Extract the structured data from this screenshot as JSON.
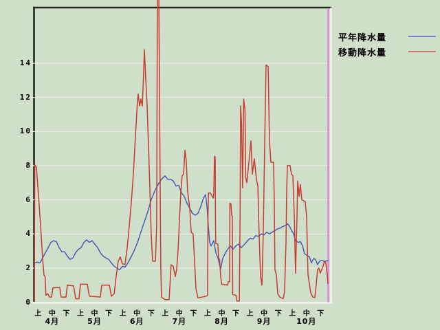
{
  "window": {
    "background_color": "#d0dfca"
  },
  "chart_data": {
    "type": "line",
    "title": "",
    "grid": true,
    "gridline_color": "#edf3e9",
    "frame": {
      "dark_edge_color": "#1f2a1e",
      "light_edge_color": "#f2f6ee"
    },
    "y_axis": {
      "ticks": [
        0,
        2,
        4,
        6,
        8,
        10,
        12,
        14
      ],
      "labels": [
        "0",
        "2",
        "4",
        "6",
        "8",
        "10",
        "12",
        "14"
      ],
      "visible_max_label": 14,
      "frame_top_value": 17.3
    },
    "x_axis": {
      "period_labels": [
        "上",
        "中",
        "下"
      ],
      "months": [
        "4月",
        "5月",
        "6月",
        "7月",
        "8月",
        "9月",
        "10月"
      ]
    },
    "legend": [
      {
        "label": "平年降水量",
        "swatch_color": "#7484c2"
      },
      {
        "label": "移動降水量",
        "swatch_color": "#c47c70"
      }
    ],
    "marker_line": {
      "name": "current-date-marker",
      "color": "#e27fe2",
      "tick_position": 20.54
    },
    "series": [
      {
        "name": "平年降水量",
        "color": "#4c5ab6",
        "points": [
          [
            -0.26,
            2.0
          ],
          [
            -0.26,
            2.3
          ],
          [
            -0.06,
            2.35
          ],
          [
            0.13,
            2.3
          ],
          [
            0.33,
            2.6
          ],
          [
            0.52,
            2.9
          ],
          [
            0.72,
            3.2
          ],
          [
            0.91,
            3.5
          ],
          [
            1.1,
            3.6
          ],
          [
            1.3,
            3.55
          ],
          [
            1.49,
            3.2
          ],
          [
            1.69,
            2.95
          ],
          [
            1.88,
            2.95
          ],
          [
            2.08,
            2.7
          ],
          [
            2.27,
            2.5
          ],
          [
            2.47,
            2.6
          ],
          [
            2.66,
            2.9
          ],
          [
            2.86,
            3.1
          ],
          [
            3.05,
            3.2
          ],
          [
            3.25,
            3.5
          ],
          [
            3.44,
            3.65
          ],
          [
            3.63,
            3.5
          ],
          [
            3.83,
            3.6
          ],
          [
            4.02,
            3.4
          ],
          [
            4.22,
            3.2
          ],
          [
            4.41,
            2.9
          ],
          [
            4.61,
            2.7
          ],
          [
            4.8,
            2.6
          ],
          [
            5.0,
            2.5
          ],
          [
            5.19,
            2.3
          ],
          [
            5.39,
            2.1
          ],
          [
            5.58,
            2.0
          ],
          [
            5.78,
            1.9
          ],
          [
            5.97,
            2.1
          ],
          [
            6.16,
            2.05
          ],
          [
            6.36,
            2.3
          ],
          [
            6.55,
            2.6
          ],
          [
            6.8,
            3.0
          ],
          [
            7.04,
            3.5
          ],
          [
            7.28,
            4.1
          ],
          [
            7.53,
            4.7
          ],
          [
            7.77,
            5.3
          ],
          [
            8.01,
            6.0
          ],
          [
            8.26,
            6.5
          ],
          [
            8.5,
            6.9
          ],
          [
            8.74,
            7.2
          ],
          [
            8.99,
            7.4
          ],
          [
            9.18,
            7.2
          ],
          [
            9.38,
            7.2
          ],
          [
            9.57,
            7.1
          ],
          [
            9.77,
            6.8
          ],
          [
            9.96,
            6.85
          ],
          [
            10.16,
            6.4
          ],
          [
            10.35,
            6.2
          ],
          [
            10.54,
            5.8
          ],
          [
            10.74,
            5.5
          ],
          [
            10.93,
            5.2
          ],
          [
            11.13,
            5.1
          ],
          [
            11.32,
            5.2
          ],
          [
            11.52,
            5.6
          ],
          [
            11.71,
            6.1
          ],
          [
            11.86,
            6.3
          ],
          [
            11.96,
            5.6
          ],
          [
            12.05,
            4.5
          ],
          [
            12.15,
            3.5
          ],
          [
            12.25,
            3.3
          ],
          [
            12.44,
            3.6
          ],
          [
            12.59,
            2.9
          ],
          [
            12.73,
            2.6
          ],
          [
            12.93,
            1.95
          ],
          [
            13.07,
            2.55
          ],
          [
            13.27,
            2.9
          ],
          [
            13.42,
            3.1
          ],
          [
            13.61,
            3.3
          ],
          [
            13.8,
            3.1
          ],
          [
            14.0,
            3.3
          ],
          [
            14.19,
            3.4
          ],
          [
            14.39,
            3.2
          ],
          [
            14.63,
            3.4
          ],
          [
            14.83,
            3.6
          ],
          [
            15.02,
            3.75
          ],
          [
            15.22,
            3.7
          ],
          [
            15.41,
            3.9
          ],
          [
            15.61,
            3.85
          ],
          [
            15.8,
            4.0
          ],
          [
            16.0,
            3.95
          ],
          [
            16.19,
            4.1
          ],
          [
            16.38,
            4.0
          ],
          [
            16.58,
            4.1
          ],
          [
            16.77,
            4.2
          ],
          [
            16.97,
            4.3
          ],
          [
            17.16,
            4.35
          ],
          [
            17.36,
            4.45
          ],
          [
            17.55,
            4.5
          ],
          [
            17.65,
            4.6
          ],
          [
            17.8,
            4.45
          ],
          [
            17.94,
            4.2
          ],
          [
            18.09,
            4.0
          ],
          [
            18.23,
            3.6
          ],
          [
            18.43,
            3.5
          ],
          [
            18.57,
            3.55
          ],
          [
            18.72,
            3.3
          ],
          [
            18.86,
            2.85
          ],
          [
            19.01,
            2.75
          ],
          [
            19.21,
            2.65
          ],
          [
            19.35,
            2.3
          ],
          [
            19.5,
            2.55
          ],
          [
            19.64,
            2.5
          ],
          [
            19.79,
            2.2
          ],
          [
            19.93,
            2.4
          ],
          [
            20.08,
            2.45
          ],
          [
            20.23,
            2.4
          ],
          [
            20.37,
            2.4
          ],
          [
            20.52,
            2.45
          ]
        ]
      },
      {
        "name": "移動降水量",
        "color": "#c53c30",
        "points": [
          [
            -0.26,
            0.1
          ],
          [
            -0.23,
            8.05
          ],
          [
            -0.11,
            7.9
          ],
          [
            0.03,
            6.3
          ],
          [
            0.18,
            4.5
          ],
          [
            0.33,
            2.5
          ],
          [
            0.42,
            1.6
          ],
          [
            0.5,
            1.5
          ],
          [
            0.56,
            0.4
          ],
          [
            0.68,
            0.5
          ],
          [
            0.82,
            0.3
          ],
          [
            0.96,
            0.3
          ],
          [
            1.06,
            0.85
          ],
          [
            1.54,
            0.85
          ],
          [
            1.64,
            0.3
          ],
          [
            1.98,
            0.3
          ],
          [
            2.08,
            1.0
          ],
          [
            2.52,
            0.95
          ],
          [
            2.66,
            0.2
          ],
          [
            2.9,
            0.2
          ],
          [
            3.0,
            1.05
          ],
          [
            3.49,
            1.05
          ],
          [
            3.63,
            0.35
          ],
          [
            4.41,
            0.3
          ],
          [
            4.51,
            1.0
          ],
          [
            5.05,
            1.0
          ],
          [
            5.19,
            0.35
          ],
          [
            5.39,
            0.5
          ],
          [
            5.53,
            1.5
          ],
          [
            5.68,
            2.4
          ],
          [
            5.82,
            2.65
          ],
          [
            5.97,
            2.25
          ],
          [
            6.16,
            2.2
          ],
          [
            6.31,
            3.2
          ],
          [
            6.46,
            4.5
          ],
          [
            6.6,
            5.8
          ],
          [
            6.75,
            7.5
          ],
          [
            6.9,
            9.8
          ],
          [
            7.04,
            11.8
          ],
          [
            7.09,
            12.2
          ],
          [
            7.19,
            11.5
          ],
          [
            7.28,
            11.9
          ],
          [
            7.38,
            11.5
          ],
          [
            7.48,
            13.5
          ],
          [
            7.53,
            14.8
          ],
          [
            7.63,
            13.0
          ],
          [
            7.72,
            11.6
          ],
          [
            7.82,
            9.2
          ],
          [
            7.92,
            6.5
          ],
          [
            8.01,
            4.0
          ],
          [
            8.11,
            2.4
          ],
          [
            8.31,
            2.4
          ],
          [
            8.4,
            4.5
          ],
          [
            8.45,
            18.0
          ],
          [
            8.55,
            18.0
          ],
          [
            8.65,
            6.0
          ],
          [
            8.69,
            2.0
          ],
          [
            8.74,
            0.3
          ],
          [
            8.99,
            0.15
          ],
          [
            9.28,
            0.15
          ],
          [
            9.42,
            2.2
          ],
          [
            9.57,
            2.1
          ],
          [
            9.72,
            1.5
          ],
          [
            9.81,
            1.9
          ],
          [
            9.91,
            3.0
          ],
          [
            10.01,
            4.8
          ],
          [
            10.11,
            6.5
          ],
          [
            10.2,
            7.4
          ],
          [
            10.3,
            7.5
          ],
          [
            10.4,
            8.9
          ],
          [
            10.49,
            8.3
          ],
          [
            10.59,
            6.5
          ],
          [
            10.74,
            5.5
          ],
          [
            10.84,
            4.1
          ],
          [
            10.98,
            4.0
          ],
          [
            11.08,
            2.4
          ],
          [
            11.18,
            0.8
          ],
          [
            11.32,
            0.25
          ],
          [
            11.91,
            0.35
          ],
          [
            12.0,
            0.4
          ],
          [
            12.03,
            5.0
          ],
          [
            12.07,
            6.4
          ],
          [
            12.2,
            6.4
          ],
          [
            12.4,
            6.1
          ],
          [
            12.44,
            6.3
          ],
          [
            12.49,
            8.55
          ],
          [
            12.54,
            8.5
          ],
          [
            12.56,
            5.0
          ],
          [
            12.58,
            3.45
          ],
          [
            12.73,
            3.4
          ],
          [
            12.78,
            2.6
          ],
          [
            12.85,
            2.5
          ],
          [
            12.93,
            1.5
          ],
          [
            13.0,
            1.05
          ],
          [
            13.42,
            1.0
          ],
          [
            13.47,
            1.2
          ],
          [
            13.56,
            1.2
          ],
          [
            13.58,
            5.8
          ],
          [
            13.66,
            5.75
          ],
          [
            13.71,
            5.1
          ],
          [
            13.75,
            5.05
          ],
          [
            13.78,
            0.45
          ],
          [
            14.02,
            0.4
          ],
          [
            14.07,
            0.07
          ],
          [
            14.25,
            0.07
          ],
          [
            14.3,
            5.0
          ],
          [
            14.34,
            11.5
          ],
          [
            14.41,
            10.4
          ],
          [
            14.48,
            6.7
          ],
          [
            14.56,
            11.9
          ],
          [
            14.65,
            11.2
          ],
          [
            14.7,
            7.3
          ],
          [
            14.78,
            7.0
          ],
          [
            14.9,
            8.0
          ],
          [
            15.07,
            9.45
          ],
          [
            15.17,
            7.5
          ],
          [
            15.31,
            8.4
          ],
          [
            15.46,
            7.2
          ],
          [
            15.56,
            6.8
          ],
          [
            15.65,
            4.0
          ],
          [
            15.75,
            1.5
          ],
          [
            15.85,
            1.0
          ],
          [
            15.94,
            4.0
          ],
          [
            16.04,
            9.0
          ],
          [
            16.14,
            13.9
          ],
          [
            16.29,
            13.8
          ],
          [
            16.38,
            9.5
          ],
          [
            16.48,
            8.2
          ],
          [
            16.67,
            8.2
          ],
          [
            16.72,
            6.0
          ],
          [
            16.77,
            1.9
          ],
          [
            16.87,
            1.6
          ],
          [
            16.97,
            0.5
          ],
          [
            17.11,
            0.3
          ],
          [
            17.36,
            0.2
          ],
          [
            17.45,
            0.6
          ],
          [
            17.55,
            3.5
          ],
          [
            17.6,
            6.5
          ],
          [
            17.65,
            8.0
          ],
          [
            17.84,
            8.0
          ],
          [
            17.94,
            7.5
          ],
          [
            18.04,
            7.4
          ],
          [
            18.14,
            5.0
          ],
          [
            18.23,
            1.7
          ],
          [
            18.33,
            5.0
          ],
          [
            18.38,
            7.1
          ],
          [
            18.48,
            6.2
          ],
          [
            18.57,
            6.9
          ],
          [
            18.67,
            6.0
          ],
          [
            18.91,
            5.9
          ],
          [
            19.01,
            5.0
          ],
          [
            19.11,
            1.6
          ],
          [
            19.21,
            1.05
          ],
          [
            19.3,
            0.55
          ],
          [
            19.45,
            0.3
          ],
          [
            19.59,
            0.27
          ],
          [
            19.69,
            1.0
          ],
          [
            19.79,
            1.9
          ],
          [
            19.88,
            2.0
          ],
          [
            19.98,
            1.7
          ],
          [
            20.08,
            1.9
          ],
          [
            20.18,
            2.1
          ],
          [
            20.27,
            2.4
          ],
          [
            20.37,
            2.3
          ],
          [
            20.47,
            1.6
          ],
          [
            20.52,
            1.1
          ]
        ]
      }
    ]
  }
}
